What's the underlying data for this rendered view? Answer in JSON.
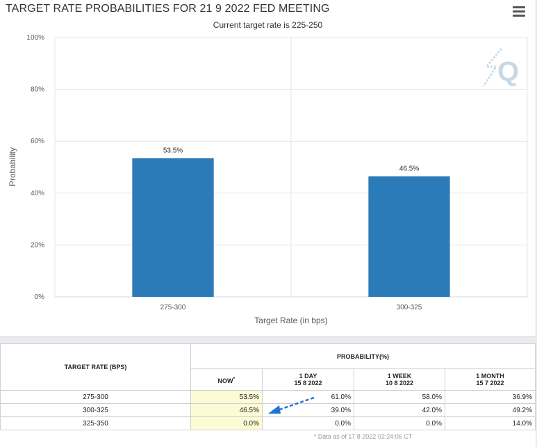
{
  "header": {
    "title": "TARGET RATE PROBABILITIES FOR 21 9 2022 FED MEETING",
    "subtitle": "Current target rate is 225-250"
  },
  "icons": {
    "menu": "hamburger-menu-icon",
    "watermark": "quikstrike-q-logo"
  },
  "chart_data": {
    "type": "bar",
    "categories": [
      "275-300",
      "300-325"
    ],
    "values": [
      53.5,
      46.5
    ],
    "data_labels": [
      "53.5%",
      "46.5%"
    ],
    "title": "TARGET RATE PROBABILITIES FOR 21 9 2022 FED MEETING",
    "subtitle": "Current target rate is 225-250",
    "xlabel": "Target Rate (in bps)",
    "ylabel": "Probability",
    "ylim": [
      0,
      100
    ],
    "yticks": [
      "0%",
      "20%",
      "40%",
      "60%",
      "80%",
      "100%"
    ],
    "grid": true,
    "bar_color": "#2b7bb9"
  },
  "table": {
    "col_target": "TARGET RATE (BPS)",
    "col_probability": "PROBABILITY(%)",
    "col_now": "NOW",
    "now_marker": "*",
    "col_1day": "1 DAY",
    "col_1day_date": "15 8 2022",
    "col_1week": "1 WEEK",
    "col_1week_date": "10 8 2022",
    "col_1month": "1 MONTH",
    "col_1month_date": "15 7 2022",
    "rows": [
      {
        "rate": "275-300",
        "now": "53.5%",
        "day": "61.0%",
        "week": "58.0%",
        "month": "36.9%"
      },
      {
        "rate": "300-325",
        "now": "46.5%",
        "day": "39.0%",
        "week": "42.0%",
        "month": "49.2%"
      },
      {
        "rate": "325-350",
        "now": "0.0%",
        "day": "0.0%",
        "week": "0.0%",
        "month": "14.0%"
      }
    ],
    "footnote": "* Data as of 17 8 2022 02:24:06 CT"
  }
}
